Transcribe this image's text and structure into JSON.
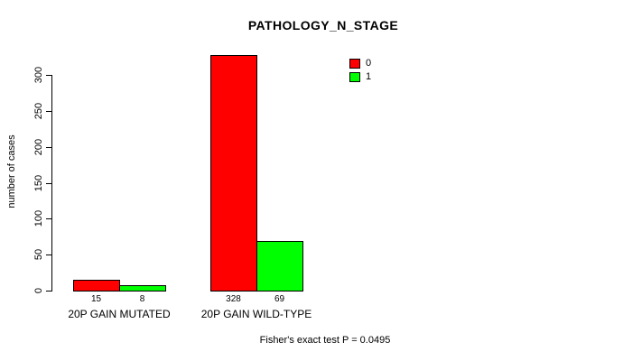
{
  "chart_data": {
    "type": "bar",
    "title": "PATHOLOGY_N_STAGE",
    "ylabel": "number of cases",
    "xlabel": "",
    "categories": [
      "20P GAIN MUTATED",
      "20P GAIN WILD-TYPE"
    ],
    "series": [
      {
        "name": "0",
        "color": "#ff0000",
        "values": [
          15,
          328
        ]
      },
      {
        "name": "1",
        "color": "#00ff00",
        "values": [
          8,
          69
        ]
      }
    ],
    "bar_value_labels": [
      [
        "15",
        "328"
      ],
      [
        "8",
        "69"
      ]
    ],
    "yticks": [
      0,
      50,
      100,
      150,
      200,
      250,
      300
    ],
    "ylim": [
      0,
      330
    ],
    "grid": false,
    "legend_position": "top-right",
    "annotation": "Fisher's exact test P = 0.0495"
  },
  "colors": {
    "series0": "#ff0000",
    "series1": "#00ff00",
    "axis": "#000000",
    "background": "#ffffff"
  }
}
